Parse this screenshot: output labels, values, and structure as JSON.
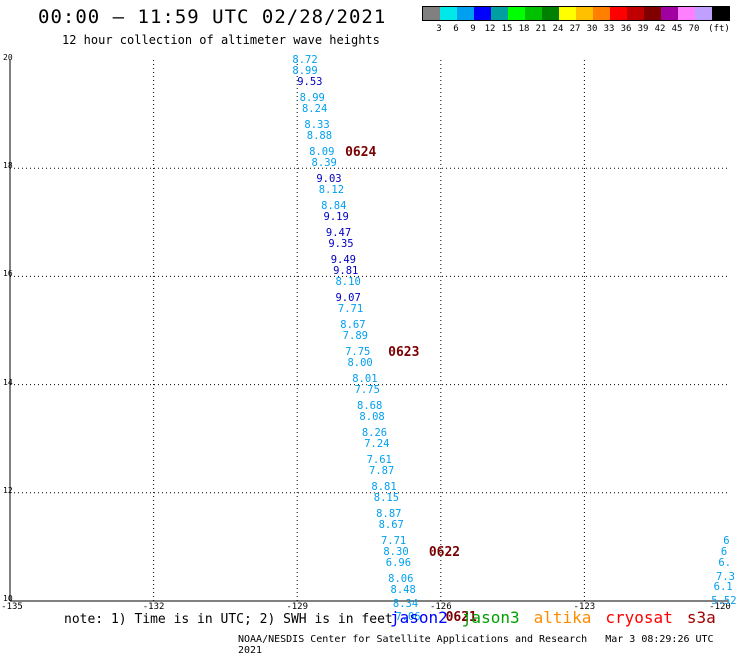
{
  "header": {
    "title": "00:00 – 11:59 UTC 02/28/2021",
    "subtitle": "12 hour collection of altimeter wave heights"
  },
  "legend": {
    "colors": [
      "#808080",
      "#00e8e8",
      "#00a0f0",
      "#0000ff",
      "#00a0a0",
      "#00ff00",
      "#00c000",
      "#008000",
      "#ffff00",
      "#ffc000",
      "#ff8000",
      "#ff0000",
      "#c00000",
      "#800000",
      "#a000a0",
      "#ff80ff",
      "#c0a0ff",
      "#000000"
    ],
    "labels": [
      "3",
      "6",
      "9",
      "12",
      "15",
      "18",
      "21",
      "24",
      "27",
      "30",
      "33",
      "36",
      "39",
      "42",
      "45",
      "70",
      "(ft)"
    ]
  },
  "chart_data": {
    "type": "scatter",
    "lon_range": [
      -135,
      -120
    ],
    "lat_range": [
      10,
      20
    ],
    "y_ticks": [
      "20",
      "18",
      "16",
      "14",
      "12",
      "10"
    ],
    "x_ticks": [
      "-135",
      "-132",
      "-129",
      "-126",
      "-123",
      "-120"
    ],
    "observations": [
      {
        "lat": 20.0,
        "lon": -129.1,
        "v": "8.72",
        "c": "#00a0f0"
      },
      {
        "lat": 19.8,
        "lon": -129.1,
        "v": "8.99",
        "c": "#00a0f0"
      },
      {
        "lat": 19.6,
        "lon": -129.0,
        "v": "9.53",
        "c": "#0000c0"
      },
      {
        "lat": 19.3,
        "lon": -128.95,
        "v": "8.99",
        "c": "#00a0f0"
      },
      {
        "lat": 19.1,
        "lon": -128.9,
        "v": "8.24",
        "c": "#00a0f0"
      },
      {
        "lat": 18.8,
        "lon": -128.85,
        "v": "8.33",
        "c": "#00a0f0"
      },
      {
        "lat": 18.6,
        "lon": -128.8,
        "v": "8.88",
        "c": "#00a0f0"
      },
      {
        "lat": 18.3,
        "lon": -128.75,
        "v": "8.09",
        "c": "#00a0f0"
      },
      {
        "lat": 18.1,
        "lon": -128.7,
        "v": "8.39",
        "c": "#00a0f0"
      },
      {
        "lat": 17.8,
        "lon": -128.6,
        "v": "9.03",
        "c": "#0000c0"
      },
      {
        "lat": 17.6,
        "lon": -128.55,
        "v": "8.12",
        "c": "#00a0f0"
      },
      {
        "lat": 17.3,
        "lon": -128.5,
        "v": "8.84",
        "c": "#00a0f0"
      },
      {
        "lat": 17.1,
        "lon": -128.45,
        "v": "9.19",
        "c": "#0000c0"
      },
      {
        "lat": 16.8,
        "lon": -128.4,
        "v": "9.47",
        "c": "#0000c0"
      },
      {
        "lat": 16.6,
        "lon": -128.35,
        "v": "9.35",
        "c": "#0000c0"
      },
      {
        "lat": 16.3,
        "lon": -128.3,
        "v": "9.49",
        "c": "#0000c0"
      },
      {
        "lat": 16.1,
        "lon": -128.25,
        "v": "9.81",
        "c": "#0000c0"
      },
      {
        "lat": 15.9,
        "lon": -128.2,
        "v": "8.10",
        "c": "#00a0f0"
      },
      {
        "lat": 15.6,
        "lon": -128.2,
        "v": "9.07",
        "c": "#0000c0"
      },
      {
        "lat": 15.4,
        "lon": -128.15,
        "v": "7.71",
        "c": "#00a0f0"
      },
      {
        "lat": 15.1,
        "lon": -128.1,
        "v": "8.67",
        "c": "#00a0f0"
      },
      {
        "lat": 14.9,
        "lon": -128.05,
        "v": "7.89",
        "c": "#00a0f0"
      },
      {
        "lat": 14.6,
        "lon": -128.0,
        "v": "7.75",
        "c": "#00a0f0"
      },
      {
        "lat": 14.4,
        "lon": -127.95,
        "v": "8.00",
        "c": "#00a0f0"
      },
      {
        "lat": 14.1,
        "lon": -127.85,
        "v": "8.01",
        "c": "#00a0f0"
      },
      {
        "lat": 13.9,
        "lon": -127.8,
        "v": "7.75",
        "c": "#00a0f0"
      },
      {
        "lat": 13.6,
        "lon": -127.75,
        "v": "8.68",
        "c": "#00a0f0"
      },
      {
        "lat": 13.4,
        "lon": -127.7,
        "v": "8.08",
        "c": "#00a0f0"
      },
      {
        "lat": 13.1,
        "lon": -127.65,
        "v": "8.26",
        "c": "#00a0f0"
      },
      {
        "lat": 12.9,
        "lon": -127.6,
        "v": "7.24",
        "c": "#00a0f0"
      },
      {
        "lat": 12.6,
        "lon": -127.55,
        "v": "7.61",
        "c": "#00a0f0"
      },
      {
        "lat": 12.4,
        "lon": -127.5,
        "v": "7.87",
        "c": "#00a0f0"
      },
      {
        "lat": 12.1,
        "lon": -127.45,
        "v": "8.81",
        "c": "#00a0f0"
      },
      {
        "lat": 11.9,
        "lon": -127.4,
        "v": "8.15",
        "c": "#00a0f0"
      },
      {
        "lat": 11.6,
        "lon": -127.35,
        "v": "8.87",
        "c": "#00a0f0"
      },
      {
        "lat": 11.4,
        "lon": -127.3,
        "v": "8.67",
        "c": "#00a0f0"
      },
      {
        "lat": 11.1,
        "lon": -127.25,
        "v": "7.71",
        "c": "#00a0f0"
      },
      {
        "lat": 10.9,
        "lon": -127.2,
        "v": "8.30",
        "c": "#00a0f0"
      },
      {
        "lat": 10.7,
        "lon": -127.15,
        "v": "6.96",
        "c": "#00a0f0"
      },
      {
        "lat": 10.4,
        "lon": -127.1,
        "v": "8.06",
        "c": "#00a0f0"
      },
      {
        "lat": 10.2,
        "lon": -127.05,
        "v": "8.48",
        "c": "#00a0f0"
      },
      {
        "lat": 9.95,
        "lon": -127.0,
        "v": "8.34",
        "c": "#00a0f0"
      },
      {
        "lat": 9.7,
        "lon": -126.95,
        "v": "7.06",
        "c": "#00a0f0"
      },
      {
        "lat": 11.1,
        "lon": -120.1,
        "v": "6",
        "c": "#00a0f0"
      },
      {
        "lat": 10.9,
        "lon": -120.15,
        "v": "6",
        "c": "#00a0f0"
      },
      {
        "lat": 10.7,
        "lon": -120.2,
        "v": "6.",
        "c": "#00a0f0"
      },
      {
        "lat": 10.45,
        "lon": -120.25,
        "v": "7.3",
        "c": "#00a0f0"
      },
      {
        "lat": 10.25,
        "lon": -120.3,
        "v": "6.1",
        "c": "#00a0f0"
      },
      {
        "lat": 10.0,
        "lon": -120.35,
        "v": "5.52",
        "c": "#00a0f0"
      }
    ],
    "pass_labels": [
      {
        "lat": 18.3,
        "lon": -128.0,
        "text": "0624"
      },
      {
        "lat": 14.6,
        "lon": -127.1,
        "text": "0623"
      },
      {
        "lat": 10.9,
        "lon": -126.25,
        "text": "0622"
      },
      {
        "lat": 9.7,
        "lon": -125.9,
        "text": "0621"
      }
    ]
  },
  "footer": {
    "note": "note: 1) Time is in UTC; 2) SWH is in feet",
    "satellites": [
      {
        "name": "jason2",
        "color": "#0000ff"
      },
      {
        "name": "jason3",
        "color": "#00a000"
      },
      {
        "name": "altika",
        "color": "#ff8c00"
      },
      {
        "name": "cryosat",
        "color": "#ff0000"
      },
      {
        "name": "s3a",
        "color": "#a00000"
      }
    ],
    "credit": "NOAA/NESDIS Center for Satellite Applications and Research",
    "timestamp": "Mar  3 08:29:26 UTC 2021"
  }
}
